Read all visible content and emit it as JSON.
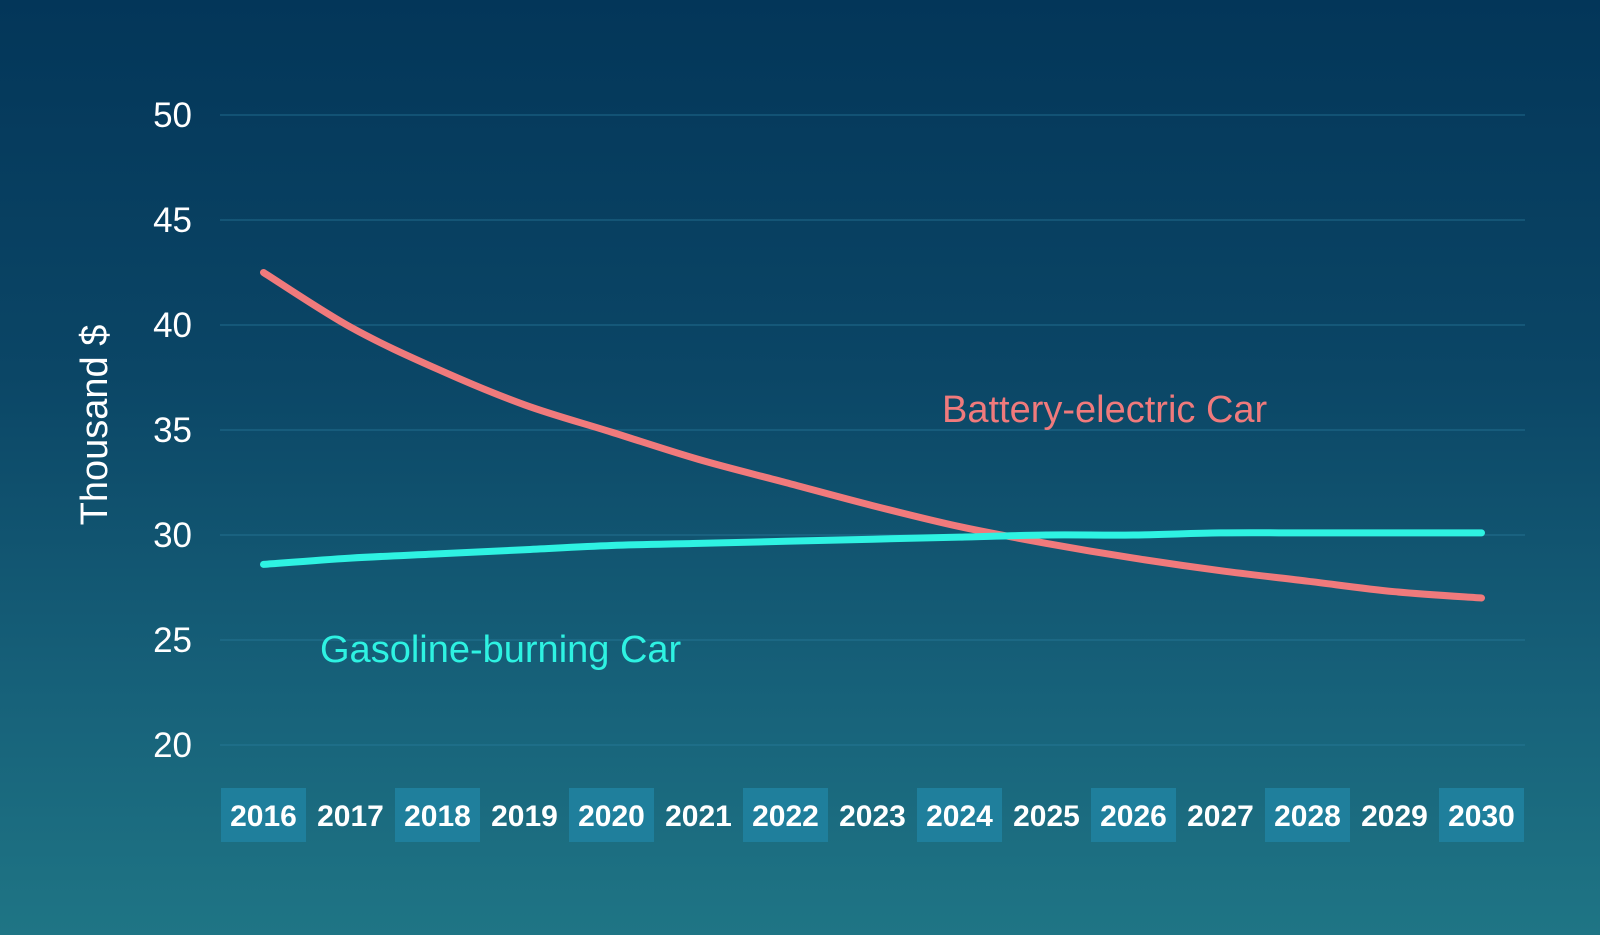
{
  "chart_data": {
    "type": "line",
    "title": "",
    "xlabel": "",
    "ylabel": "Thousand $",
    "ylim": [
      20,
      50
    ],
    "yticks": [
      "20",
      "25",
      "30",
      "35",
      "40",
      "45",
      "50"
    ],
    "grid": true,
    "categories": [
      "2016",
      "2017",
      "2018",
      "2019",
      "2020",
      "2021",
      "2022",
      "2023",
      "2024",
      "2025",
      "2026",
      "2027",
      "2028",
      "2029",
      "2030"
    ],
    "series": [
      {
        "name": "Battery-electric Car",
        "color": "#f07a7c",
        "values": [
          42.5,
          39.9,
          37.9,
          36.2,
          34.9,
          33.6,
          32.5,
          31.4,
          30.4,
          29.6,
          28.9,
          28.3,
          27.8,
          27.3,
          27.0
        ]
      },
      {
        "name": "Gasoline-burning Car",
        "color": "#2ef2e2",
        "values": [
          28.6,
          28.9,
          29.1,
          29.3,
          29.5,
          29.6,
          29.7,
          29.8,
          29.9,
          30.0,
          30.0,
          30.1,
          30.1,
          30.1,
          30.1
        ]
      }
    ]
  }
}
